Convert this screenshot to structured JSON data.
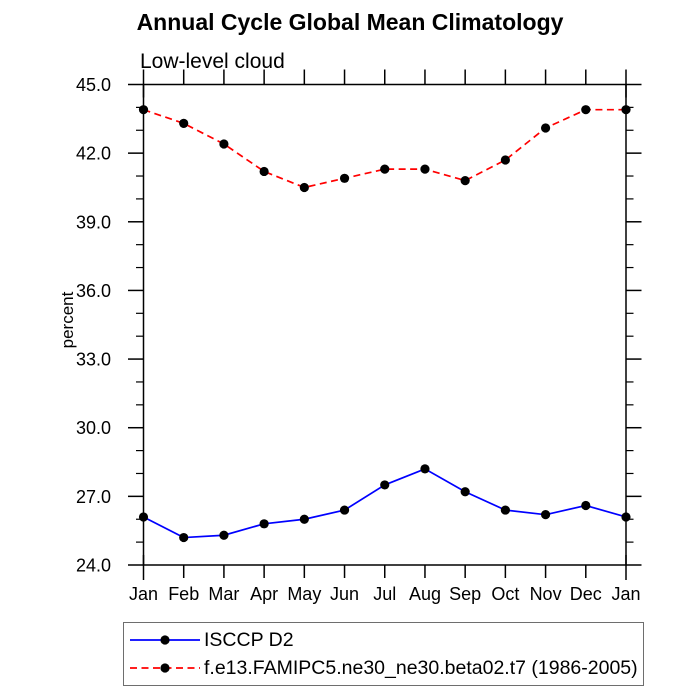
{
  "chart_data": {
    "type": "line",
    "title": "Annual Cycle Global Mean Climatology",
    "subtitle": "Low-level cloud",
    "ylabel": "percent",
    "categories": [
      "Jan",
      "Feb",
      "Mar",
      "Apr",
      "May",
      "Jun",
      "Jul",
      "Aug",
      "Sep",
      "Oct",
      "Nov",
      "Dec",
      "Jan"
    ],
    "ylim": [
      24,
      45
    ],
    "yticks": [
      24,
      27,
      30,
      33,
      36,
      39,
      42,
      45
    ],
    "y_minor_step": 1,
    "y_tick_decimals": 1,
    "grid": false,
    "legend_position": "bottom-left",
    "axis_color": "#000000",
    "series": [
      {
        "name": "ISCCP D2",
        "line_color": "#0000ff",
        "line_style": "solid",
        "marker": "filled-circle",
        "marker_color": "#000000",
        "values": [
          26.1,
          25.2,
          25.3,
          25.8,
          26.0,
          26.4,
          27.5,
          28.2,
          27.2,
          26.4,
          26.2,
          26.6,
          26.1
        ]
      },
      {
        "name": "f.e13.FAMIPC5.ne30_ne30.beta02.t7 (1986-2005)",
        "line_color": "#ff0000",
        "line_style": "dashed",
        "marker": "filled-circle",
        "marker_color": "#000000",
        "values": [
          43.9,
          43.3,
          42.4,
          41.2,
          40.5,
          40.9,
          41.3,
          41.3,
          40.8,
          41.7,
          43.1,
          43.9,
          43.9
        ]
      }
    ]
  }
}
